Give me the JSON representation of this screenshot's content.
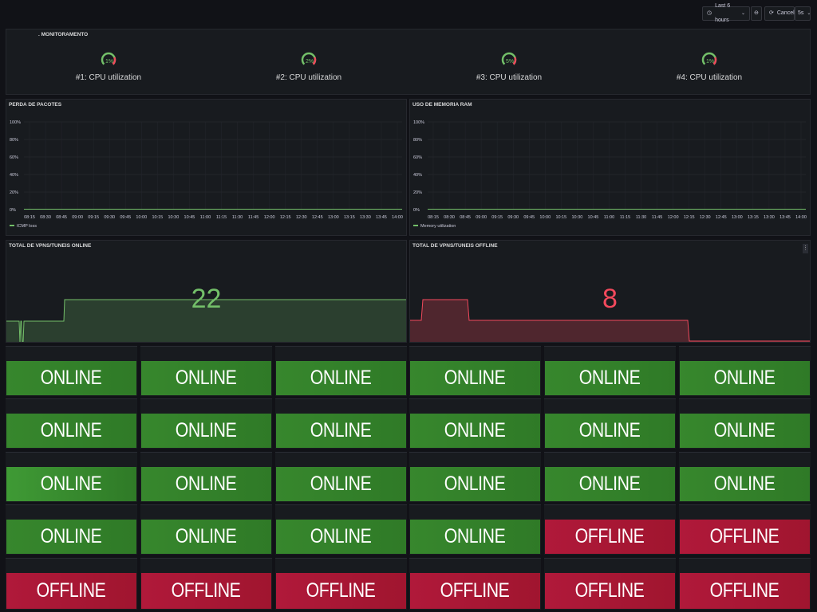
{
  "toolbar": {
    "time_range_label": "Last 6 hours",
    "cancel_label": "Cancel",
    "refresh_label": "5s"
  },
  "monitor_panel": {
    "title": ". MONITORAMENTO",
    "gauges": [
      {
        "name": "#1: CPU utilization",
        "value_label": "1%",
        "value": 1
      },
      {
        "name": "#2: CPU utilization",
        "value_label": "2%",
        "value": 2
      },
      {
        "name": "#3: CPU utilization",
        "value_label": "5%",
        "value": 5
      },
      {
        "name": "#4: CPU utilization",
        "value_label": "1%",
        "value": 1
      }
    ]
  },
  "packet_loss_panel": {
    "title": "PERDA DE PACOTES",
    "legend": "ICMP loss",
    "series_color": "#73bf69"
  },
  "memory_panel": {
    "title": "USO DE MEMORIA RAM",
    "legend": "Memory utilization",
    "series_color": "#73bf69"
  },
  "y_ticks": [
    "100%",
    "80%",
    "60%",
    "40%",
    "20%",
    "0%"
  ],
  "x_ticks": [
    "08:15",
    "08:30",
    "08:45",
    "09:00",
    "09:15",
    "09:30",
    "09:45",
    "10:00",
    "10:15",
    "10:30",
    "10:45",
    "11:00",
    "11:15",
    "11:30",
    "11:45",
    "12:00",
    "12:15",
    "12:30",
    "12:45",
    "13:00",
    "13:15",
    "13:30",
    "13:45",
    "14:00"
  ],
  "vpn_online_panel": {
    "title": "TOTAL DE VPNS/TUNEIS ONLINE",
    "value": "22",
    "color": "#73bf69"
  },
  "vpn_offline_panel": {
    "title": "TOTAL DE VPNS/TUNEIS OFFLINE",
    "value": "8",
    "color": "#f2495c"
  },
  "status_tiles": [
    [
      "ONLINE",
      "ONLINE",
      "ONLINE",
      "ONLINE",
      "ONLINE",
      "ONLINE"
    ],
    [
      "ONLINE",
      "ONLINE",
      "ONLINE",
      "ONLINE",
      "ONLINE",
      "ONLINE"
    ],
    [
      "ONLINE",
      "ONLINE",
      "ONLINE",
      "ONLINE",
      "ONLINE",
      "ONLINE"
    ],
    [
      "ONLINE",
      "ONLINE",
      "ONLINE",
      "ONLINE",
      "OFFLINE",
      "OFFLINE"
    ],
    [
      "OFFLINE",
      "OFFLINE",
      "OFFLINE",
      "OFFLINE",
      "OFFLINE",
      "OFFLINE"
    ]
  ],
  "colors": {
    "online": "#37872d",
    "online_bright": "#3f9a35",
    "offline": "#b0193a"
  }
}
